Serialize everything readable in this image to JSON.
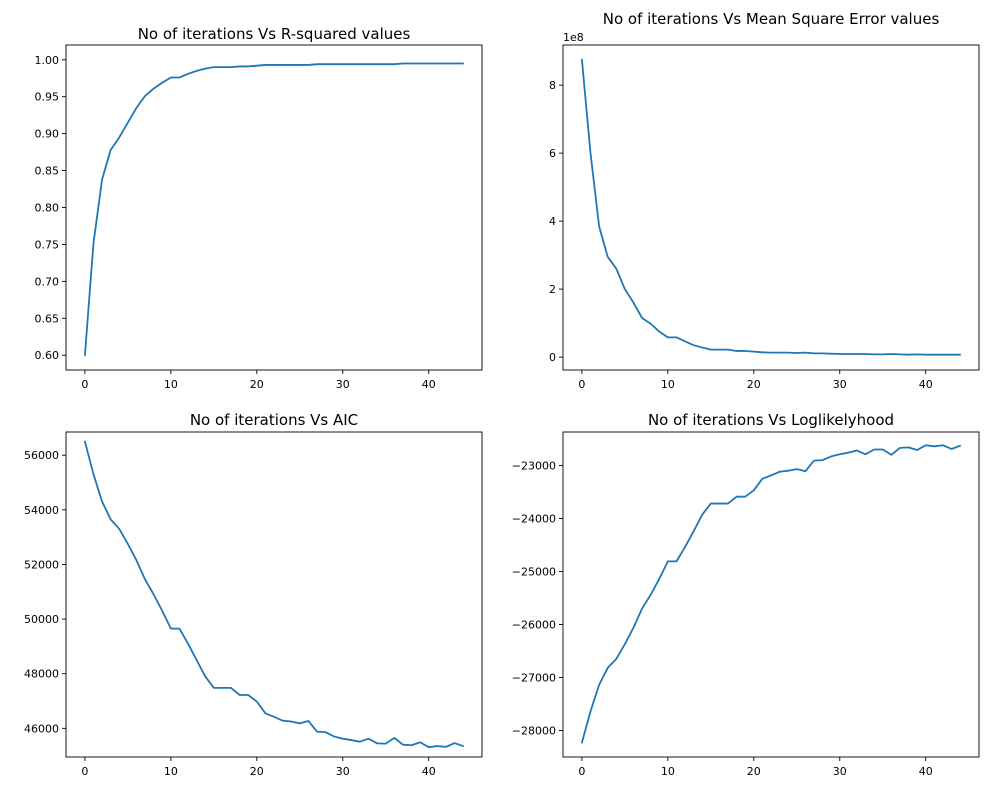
{
  "figure": {
    "background": "#ffffff",
    "line_color": "#1f77b4"
  },
  "chart_data": [
    {
      "type": "line",
      "title": "No of iterations Vs R-squared values",
      "xlabel": "",
      "ylabel": "",
      "xlim": [
        -2.2,
        46.2
      ],
      "ylim": [
        0.58,
        1.02
      ],
      "xticks": [
        0,
        10,
        20,
        30,
        40
      ],
      "xtick_labels": [
        "0",
        "10",
        "20",
        "30",
        "40"
      ],
      "yticks": [
        0.6,
        0.65,
        0.7,
        0.75,
        0.8,
        0.85,
        0.9,
        0.95,
        1.0
      ],
      "ytick_labels": [
        "0.60",
        "0.65",
        "0.70",
        "0.75",
        "0.80",
        "0.85",
        "0.90",
        "0.95",
        "1.00"
      ],
      "offset_label": "",
      "series": [
        {
          "name": "R-squared",
          "x": [
            0,
            1,
            2,
            3,
            4,
            5,
            6,
            7,
            8,
            9,
            10,
            11,
            12,
            13,
            14,
            15,
            16,
            17,
            18,
            19,
            20,
            21,
            22,
            23,
            24,
            25,
            26,
            27,
            28,
            29,
            30,
            31,
            32,
            33,
            34,
            35,
            36,
            37,
            38,
            39,
            40,
            41,
            42,
            43,
            44
          ],
          "y": [
            0.6,
            0.752,
            0.838,
            0.878,
            0.895,
            0.915,
            0.935,
            0.951,
            0.961,
            0.969,
            0.976,
            0.976,
            0.981,
            0.985,
            0.988,
            0.99,
            0.99,
            0.99,
            0.991,
            0.991,
            0.992,
            0.993,
            0.993,
            0.993,
            0.993,
            0.993,
            0.993,
            0.994,
            0.994,
            0.994,
            0.994,
            0.994,
            0.994,
            0.994,
            0.994,
            0.994,
            0.994,
            0.995,
            0.995,
            0.995,
            0.995,
            0.995,
            0.995,
            0.995,
            0.995
          ]
        }
      ]
    },
    {
      "type": "line",
      "title": "No of iterations Vs Mean Square Error values",
      "xlabel": "",
      "ylabel": "",
      "xlim": [
        -2.2,
        46.2
      ],
      "ylim": [
        -0.38,
        9.18
      ],
      "xticks": [
        0,
        10,
        20,
        30,
        40
      ],
      "xtick_labels": [
        "0",
        "10",
        "20",
        "30",
        "40"
      ],
      "yticks": [
        0,
        2,
        4,
        6,
        8
      ],
      "ytick_labels": [
        "0",
        "2",
        "4",
        "6",
        "8"
      ],
      "offset_label": "1e8",
      "series": [
        {
          "name": "Mean Square Error",
          "x": [
            0,
            1,
            2,
            3,
            4,
            5,
            6,
            7,
            8,
            9,
            10,
            11,
            12,
            13,
            14,
            15,
            16,
            17,
            18,
            19,
            20,
            21,
            22,
            23,
            24,
            25,
            26,
            27,
            28,
            29,
            30,
            31,
            32,
            33,
            34,
            35,
            36,
            37,
            38,
            39,
            40,
            41,
            42,
            43,
            44
          ],
          "y": [
            8.75,
            6.0,
            3.85,
            2.95,
            2.6,
            2.0,
            1.6,
            1.15,
            0.98,
            0.75,
            0.58,
            0.58,
            0.46,
            0.35,
            0.28,
            0.22,
            0.22,
            0.22,
            0.18,
            0.18,
            0.16,
            0.14,
            0.13,
            0.13,
            0.13,
            0.12,
            0.13,
            0.11,
            0.11,
            0.1,
            0.09,
            0.09,
            0.09,
            0.09,
            0.08,
            0.08,
            0.09,
            0.08,
            0.07,
            0.08,
            0.07,
            0.07,
            0.07,
            0.07,
            0.07
          ]
        }
      ]
    },
    {
      "type": "line",
      "title": "No of iterations Vs AIC",
      "xlabel": "",
      "ylabel": "",
      "xlim": [
        -2.2,
        46.2
      ],
      "ylim": [
        44950,
        56850
      ],
      "xticks": [
        0,
        10,
        20,
        30,
        40
      ],
      "xtick_labels": [
        "0",
        "10",
        "20",
        "30",
        "40"
      ],
      "yticks": [
        46000,
        48000,
        50000,
        52000,
        54000,
        56000
      ],
      "ytick_labels": [
        "46000",
        "48000",
        "50000",
        "52000",
        "54000",
        "56000"
      ],
      "offset_label": "",
      "series": [
        {
          "name": "AIC",
          "x": [
            0,
            1,
            2,
            3,
            4,
            5,
            6,
            7,
            8,
            9,
            10,
            11,
            12,
            13,
            14,
            15,
            16,
            17,
            18,
            19,
            20,
            21,
            22,
            23,
            24,
            25,
            26,
            27,
            28,
            29,
            30,
            31,
            32,
            33,
            34,
            35,
            36,
            37,
            38,
            39,
            40,
            41,
            42,
            43,
            44
          ],
          "y": [
            56500,
            55300,
            54300,
            53650,
            53300,
            52750,
            52150,
            51450,
            50900,
            50300,
            49650,
            49650,
            49100,
            48500,
            47900,
            47480,
            47480,
            47480,
            47220,
            47220,
            46980,
            46550,
            46420,
            46280,
            46250,
            46180,
            46270,
            45880,
            45860,
            45700,
            45620,
            45570,
            45510,
            45620,
            45450,
            45440,
            45650,
            45400,
            45380,
            45490,
            45310,
            45350,
            45320,
            45460,
            45350
          ]
        }
      ]
    },
    {
      "type": "line",
      "title": "No of iterations Vs Loglikelyhood",
      "xlabel": "",
      "ylabel": "",
      "xlim": [
        -2.2,
        46.2
      ],
      "ylim": [
        -28500,
        -22370
      ],
      "xticks": [
        0,
        10,
        20,
        30,
        40
      ],
      "xtick_labels": [
        "0",
        "10",
        "20",
        "30",
        "40"
      ],
      "yticks": [
        -28000,
        -27000,
        -26000,
        -25000,
        -24000,
        -23000
      ],
      "ytick_labels": [
        "−28000",
        "−27000",
        "−26000",
        "−25000",
        "−24000",
        "−23000"
      ],
      "offset_label": "",
      "series": [
        {
          "name": "Loglikelyhood",
          "x": [
            0,
            1,
            2,
            3,
            4,
            5,
            6,
            7,
            8,
            9,
            10,
            11,
            12,
            13,
            14,
            15,
            16,
            17,
            18,
            19,
            20,
            21,
            22,
            23,
            24,
            25,
            26,
            27,
            28,
            29,
            30,
            31,
            32,
            33,
            34,
            35,
            36,
            37,
            38,
            39,
            40,
            41,
            42,
            43,
            44
          ],
          "y": [
            -28230,
            -27640,
            -27140,
            -26820,
            -26650,
            -26370,
            -26060,
            -25700,
            -25440,
            -25140,
            -24810,
            -24810,
            -24540,
            -24240,
            -23930,
            -23720,
            -23720,
            -23720,
            -23590,
            -23590,
            -23470,
            -23250,
            -23190,
            -23120,
            -23100,
            -23070,
            -23110,
            -22910,
            -22900,
            -22830,
            -22790,
            -22760,
            -22720,
            -22790,
            -22700,
            -22700,
            -22800,
            -22670,
            -22660,
            -22710,
            -22620,
            -22640,
            -22620,
            -22690,
            -22630
          ]
        }
      ]
    }
  ]
}
